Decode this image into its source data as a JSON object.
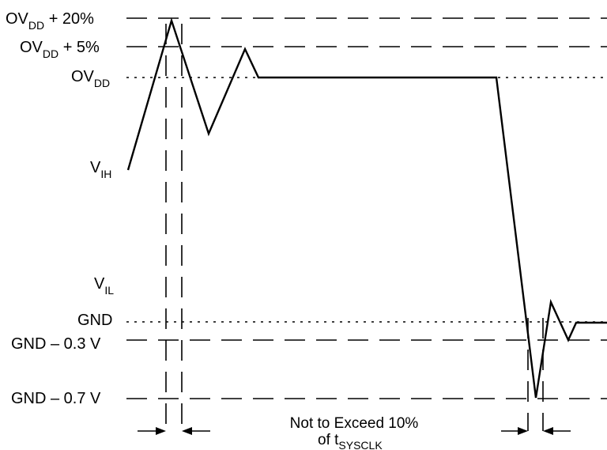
{
  "labels": {
    "ovdd_plus_20": {
      "main": "OV",
      "sub": "DD",
      "tail": " + 20%"
    },
    "ovdd_plus_5": {
      "main": "OV",
      "sub": "DD",
      "tail": " + 5%"
    },
    "ovdd": {
      "main": "OV",
      "sub": "DD"
    },
    "vih": {
      "main": "V",
      "sub": "IH"
    },
    "vil": {
      "main": "V",
      "sub": "IL"
    },
    "gnd": "GND",
    "gnd_minus_03": "GND – 0.3 V",
    "gnd_minus_07": "GND – 0.7 V"
  },
  "note": {
    "line1": "Not to Exceed 10%",
    "line2_main": "of t",
    "line2_sub": "SYSCLK"
  }
}
